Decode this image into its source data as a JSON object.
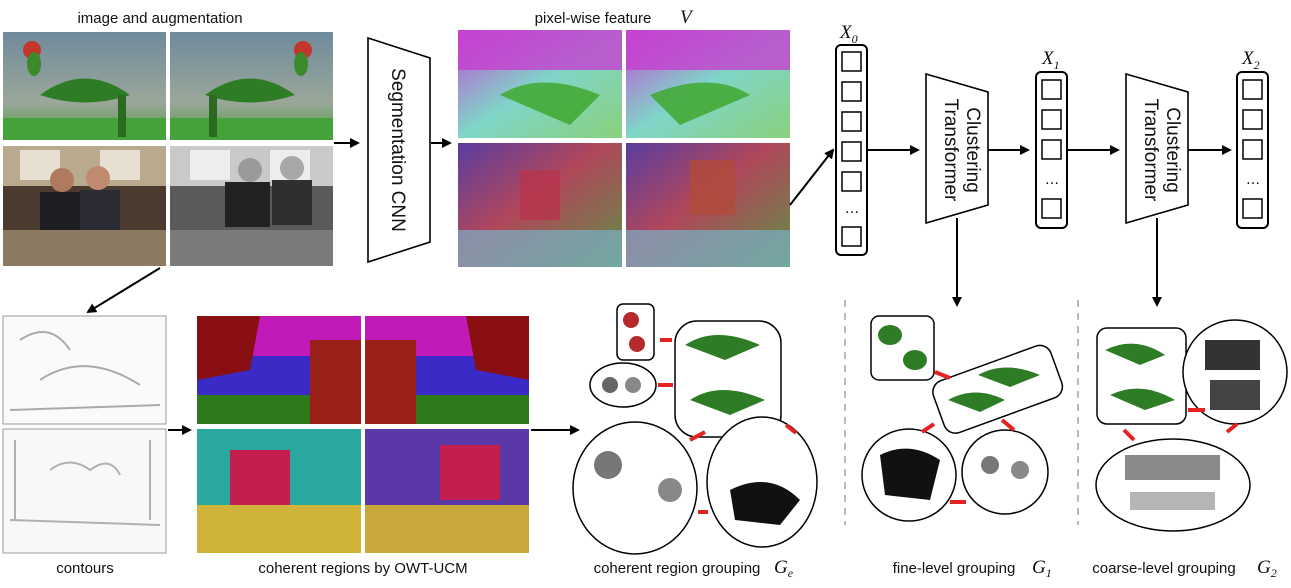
{
  "labels": {
    "image_aug": "image and augmentation",
    "pixel_feature": "pixel-wise feature",
    "pixel_feature_symbol": "V",
    "contours": "contours",
    "coherent_regions": "coherent regions by OWT-UCM",
    "coherent_grouping": "coherent region grouping",
    "fine_grouping": "fine-level grouping",
    "coarse_grouping": "coarse-level grouping"
  },
  "symbols": {
    "Ge": {
      "main": "G",
      "sub": "e"
    },
    "G1": {
      "main": "G",
      "sub": "1"
    },
    "G2": {
      "main": "G",
      "sub": "2"
    },
    "X0": {
      "main": "X",
      "sub": "0"
    },
    "X1": {
      "main": "X",
      "sub": "1"
    },
    "X2": {
      "main": "X",
      "sub": "2"
    }
  },
  "blocks": {
    "cnn": "Segmentation CNN",
    "ct1": [
      "Clustering",
      "Transformer"
    ],
    "ct2": [
      "Clustering",
      "Transformer"
    ]
  },
  "dots": "…",
  "colors": {
    "arrow": "#000000",
    "pair_arrow": "#e52222",
    "dash": "#bbbbbb"
  }
}
